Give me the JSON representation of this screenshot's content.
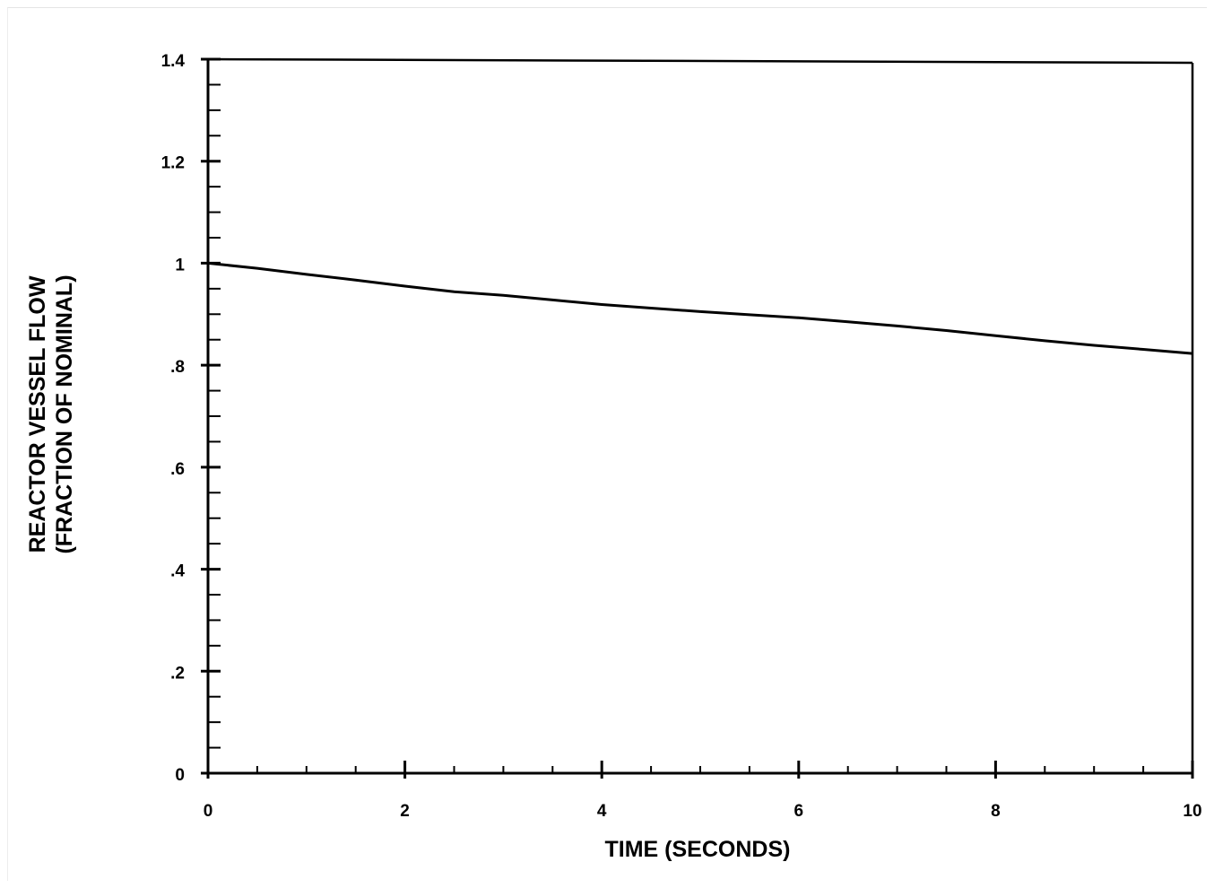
{
  "chart_data": {
    "type": "line",
    "xlabel": "TIME (SECONDS)",
    "ylabel_lines": [
      "REACTOR VESSEL FLOW",
      "(FRACTION OF NOMINAL)"
    ],
    "xlim": [
      0,
      10
    ],
    "ylim": [
      0,
      1.4
    ],
    "x_ticks": [
      0,
      2,
      4,
      6,
      8,
      10
    ],
    "x_tick_labels": [
      "0",
      "2",
      "4",
      "6",
      "8",
      "10"
    ],
    "x_minor_step": 0.5,
    "y_ticks": [
      0,
      0.2,
      0.4,
      0.6,
      0.8,
      1.0,
      1.2,
      1.4
    ],
    "y_tick_labels": [
      "0",
      ".2",
      ".4",
      ".6",
      ".8",
      "1",
      "1.2",
      "1.4"
    ],
    "y_minor_step": 0.05,
    "grid": false,
    "legend": "none",
    "series": [
      {
        "x": [
          0,
          0.5,
          1,
          1.5,
          2,
          2.5,
          3,
          3.5,
          4,
          4.5,
          5,
          5.5,
          6,
          6.5,
          7,
          7.5,
          8,
          8.5,
          9,
          9.5,
          10
        ],
        "y": [
          1.0,
          0.99,
          0.978,
          0.967,
          0.955,
          0.944,
          0.937,
          0.928,
          0.919,
          0.912,
          0.905,
          0.899,
          0.893,
          0.885,
          0.877,
          0.868,
          0.858,
          0.848,
          0.839,
          0.831,
          0.823
        ]
      }
    ],
    "colors": {
      "line": "#000000",
      "axes": "#000000"
    }
  }
}
